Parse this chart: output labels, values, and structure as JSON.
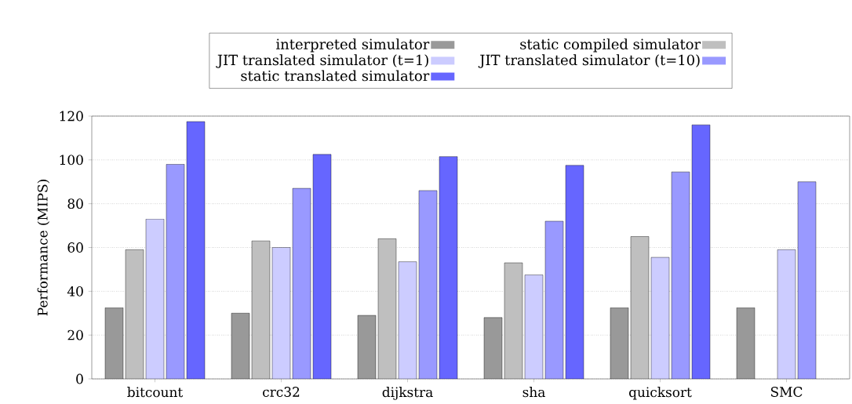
{
  "chart_data": {
    "type": "bar",
    "ylabel": "Performance (MIPS)",
    "categories": [
      "bitcount",
      "crc32",
      "dijkstra",
      "sha",
      "quicksort",
      "SMC"
    ],
    "series": [
      {
        "name": "interpreted simulator",
        "color": "#999999",
        "values": [
          32.5,
          30,
          29,
          28,
          32.5,
          32.5
        ]
      },
      {
        "name": "static compiled simulator",
        "color": "#bfbfbf",
        "values": [
          59,
          63,
          64,
          53,
          65,
          null
        ]
      },
      {
        "name": "JIT translated simulator (t=1)",
        "color": "#ccccff",
        "values": [
          73,
          60,
          53.5,
          47.5,
          55.5,
          59
        ]
      },
      {
        "name": "JIT translated simulator (t=10)",
        "color": "#9999ff",
        "values": [
          98,
          87,
          86,
          72,
          94.5,
          90
        ]
      },
      {
        "name": "static translated simulator",
        "color": "#6666ff",
        "values": [
          117.5,
          102.5,
          101.5,
          97.5,
          116,
          null
        ]
      }
    ],
    "ylim": [
      0,
      120
    ],
    "yticks": [
      0,
      20,
      40,
      60,
      80,
      100,
      120
    ],
    "grid": "y",
    "legend": "top"
  }
}
